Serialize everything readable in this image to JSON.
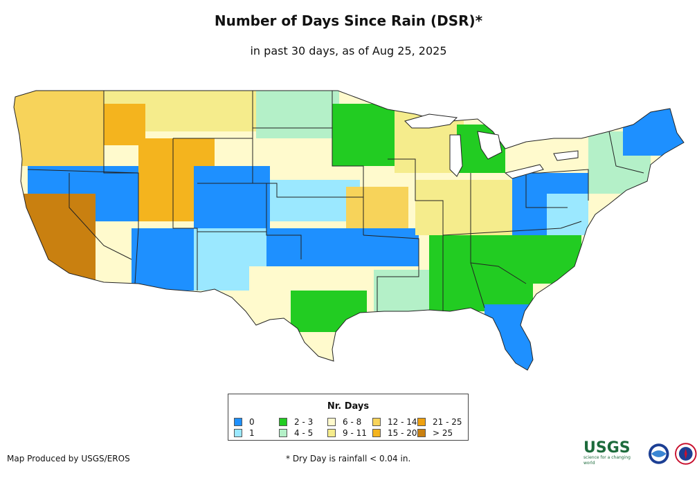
{
  "title": "Number of Days Since Rain (DSR)*",
  "subtitle": "in past 30 days, as of Aug 25, 2025",
  "legend": {
    "title": "Nr. Days",
    "items": [
      {
        "label": "0",
        "color": "#1e90ff"
      },
      {
        "label": "1",
        "color": "#9be8ff"
      },
      {
        "label": "2 - 3",
        "color": "#22cc22"
      },
      {
        "label": "4 - 5",
        "color": "#b4f0c8"
      },
      {
        "label": "6 - 8",
        "color": "#fffacd"
      },
      {
        "label": "9 - 11",
        "color": "#f5ec8c"
      },
      {
        "label": "12 - 14",
        "color": "#f7d35a"
      },
      {
        "label": "15 - 20",
        "color": "#f4b41e"
      },
      {
        "label": "21 - 25",
        "color": "#eea010"
      },
      {
        "label": "> 25",
        "color": "#c98010"
      }
    ]
  },
  "footer": {
    "produced_by": "Map Produced by USGS/EROS",
    "note": "* Dry Day is rainfall < 0.04 in."
  },
  "logos": {
    "usgs_text": "USGS",
    "usgs_tagline": "science for a changing world"
  }
}
